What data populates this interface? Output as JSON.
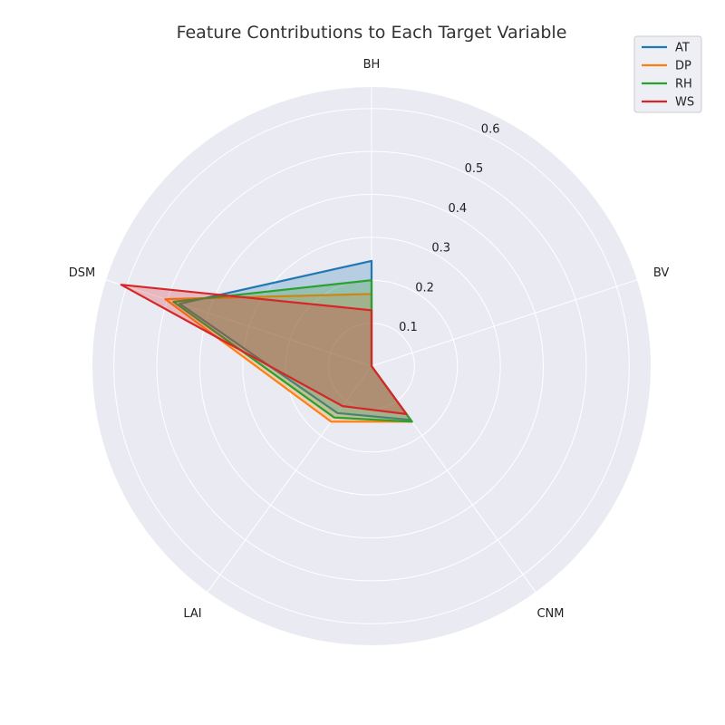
{
  "chart_data": {
    "type": "radar",
    "title": "Feature Contributions to Each Target Variable",
    "axes": [
      "BH",
      "BV",
      "CNM",
      "LAI",
      "DSM"
    ],
    "rticks": [
      0.1,
      0.2,
      0.3,
      0.4,
      0.5,
      0.6
    ],
    "rtick_labels": [
      "0.1",
      "0.2",
      "0.3",
      "0.4",
      "0.5",
      "0.6"
    ],
    "rlim": [
      0,
      0.65
    ],
    "grid": true,
    "legend_position": "top-right",
    "series": [
      {
        "name": "AT",
        "color": "#1f77b4",
        "values": [
          0.245,
          0.0,
          0.155,
          0.135,
          0.47
        ]
      },
      {
        "name": "DP",
        "color": "#ff7f0e",
        "values": [
          0.168,
          0.0,
          0.16,
          0.16,
          0.505
        ]
      },
      {
        "name": "RH",
        "color": "#2ca02c",
        "values": [
          0.2,
          0.0,
          0.16,
          0.148,
          0.485
        ]
      },
      {
        "name": "WS",
        "color": "#d62728",
        "values": [
          0.13,
          0.0,
          0.138,
          0.115,
          0.613
        ]
      }
    ]
  }
}
